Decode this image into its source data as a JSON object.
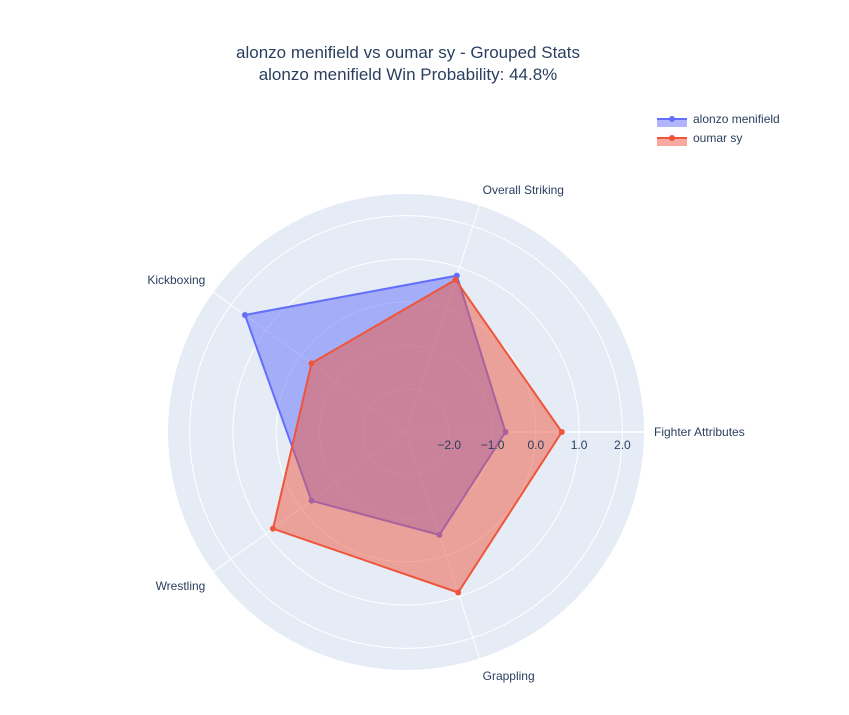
{
  "chart_data": {
    "type": "radar",
    "title": "alonzo menifield vs oumar sy - Grouped Stats",
    "subtitle": "alonzo menifield Win Probability: 44.8%",
    "categories": [
      "Fighter Attributes",
      "Overall Striking",
      "Kickboxing",
      "Wrestling",
      "Grappling"
    ],
    "radial_range": [
      -3.0,
      2.5
    ],
    "radial_ticks": [
      -2.0,
      -1.0,
      0.0,
      1.0,
      2.0
    ],
    "radial_tick_labels": [
      "−2.0",
      "−1.0",
      "0.0",
      "1.0",
      "2.0"
    ],
    "grid": true,
    "legend_position": "top-right",
    "series": [
      {
        "name": "alonzo menifield",
        "color": "#636efa",
        "fill": "rgba(99,110,250,0.5)",
        "values": [
          -0.7,
          0.8,
          1.6,
          -0.3,
          -0.5
        ]
      },
      {
        "name": "oumar sy",
        "color": "#ef553b",
        "fill": "rgba(239,85,59,0.5)",
        "values": [
          0.6,
          0.7,
          -0.3,
          0.8,
          0.9
        ]
      }
    ]
  }
}
